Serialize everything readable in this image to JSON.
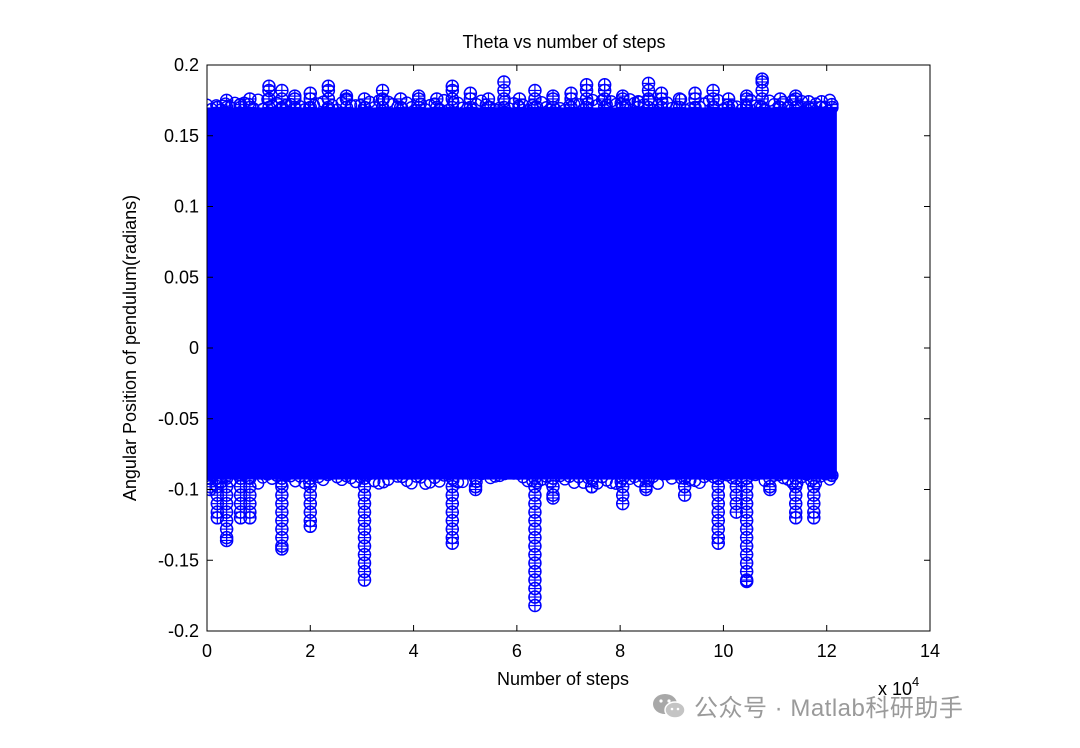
{
  "chart_data": {
    "type": "scatter",
    "title": "Theta vs number of steps",
    "xlabel": "Number of steps",
    "ylabel": "Angular Position of pendulum(radians)",
    "x_multiplier_label": "x 10",
    "x_multiplier_exponent": "4",
    "xlim": [
      0,
      140000
    ],
    "ylim": [
      -0.2,
      0.2
    ],
    "xticks": [
      0,
      20000,
      40000,
      60000,
      80000,
      100000,
      120000,
      140000
    ],
    "xtick_labels": [
      "0",
      "2",
      "4",
      "6",
      "8",
      "10",
      "12",
      "14"
    ],
    "yticks": [
      -0.2,
      -0.15,
      -0.1,
      -0.05,
      0,
      0.05,
      0.1,
      0.15,
      0.2
    ],
    "ytick_labels": [
      "-0.2",
      "-0.15",
      "-0.1",
      "-0.05",
      "0",
      "0.05",
      "0.1",
      "0.15",
      "0.2"
    ],
    "marker": "circle",
    "marker_color": "#0000ff",
    "data_extent": {
      "x": [
        0,
        121000
      ],
      "y_min": -0.182,
      "y_max": 0.19
    },
    "series": [
      {
        "x": [
          500,
          2000,
          3800,
          6500,
          8300,
          12000,
          14500,
          17000,
          20000,
          23500,
          27000,
          30500,
          34000,
          37500,
          41000,
          44500,
          47500,
          51000,
          54500,
          57500,
          60500,
          63500,
          67000,
          70500,
          73500,
          77000,
          80500,
          83500,
          85500,
          88000,
          91500,
          94500,
          98000,
          101000,
          104500,
          107500,
          111000,
          114000,
          116500,
          119000,
          121000
        ],
        "y": [
          0.16,
          0.17,
          0.175,
          0.172,
          0.176,
          0.185,
          0.182,
          0.178,
          0.18,
          0.185,
          0.178,
          0.176,
          0.182,
          0.176,
          0.178,
          0.176,
          0.185,
          0.18,
          0.176,
          0.188,
          0.176,
          0.182,
          0.178,
          0.18,
          0.186,
          0.186,
          0.178,
          0.174,
          0.187,
          0.18,
          0.176,
          0.18,
          0.182,
          0.176,
          0.178,
          0.19,
          0.176,
          0.178,
          0.174,
          0.174,
          0.172
        ]
      },
      {
        "x": [
          600,
          2000,
          3800,
          6500,
          8300,
          14500,
          20000,
          30500,
          47500,
          52000,
          63500,
          67000,
          74500,
          80500,
          85000,
          92500,
          99000,
          102500,
          104500,
          109000,
          114000,
          117500,
          121000
        ],
        "y": [
          -0.1,
          -0.12,
          -0.136,
          -0.12,
          -0.12,
          -0.142,
          -0.126,
          -0.164,
          -0.138,
          -0.1,
          -0.182,
          -0.106,
          -0.098,
          -0.11,
          -0.1,
          -0.104,
          -0.138,
          -0.116,
          -0.165,
          -0.1,
          -0.12,
          -0.12,
          -0.09
        ]
      }
    ]
  },
  "watermark": {
    "text": "公众号 · Matlab科研助手",
    "icon": "wechat-icon"
  }
}
